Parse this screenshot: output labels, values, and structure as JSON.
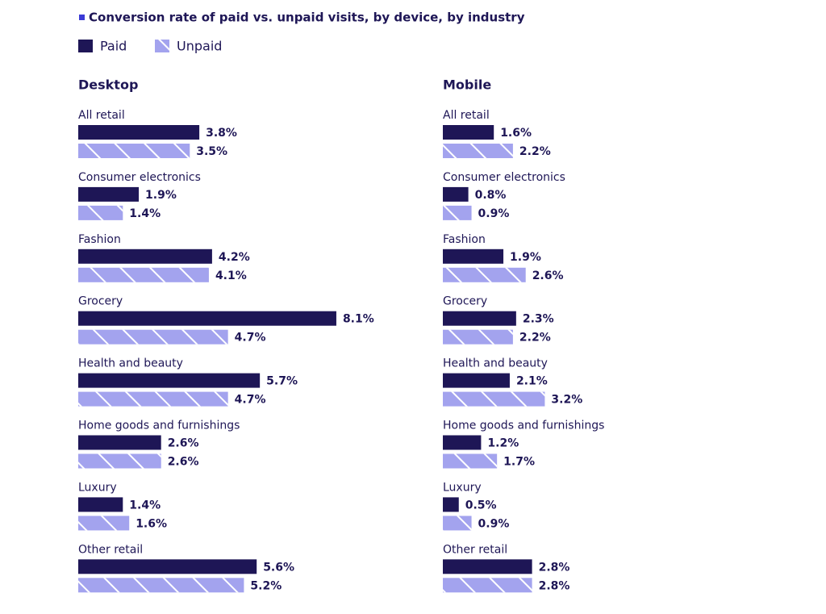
{
  "header": {
    "title": "Conversion rate of paid vs. unpaid visits, by device, by industry"
  },
  "chart_data": [
    {
      "type": "bar",
      "title": "Desktop",
      "categories": [
        "All retail",
        "Consumer electronics",
        "Fashion",
        "Grocery",
        "Health and beauty",
        "Home goods and furnishings",
        "Luxury",
        "Other retail"
      ],
      "series": [
        {
          "name": "Paid",
          "color": "#1e1656",
          "values": [
            3.8,
            1.9,
            4.2,
            8.1,
            5.7,
            2.6,
            1.4,
            5.6
          ],
          "value_labels": [
            "3.8%",
            "1.9%",
            "4.2%",
            "8.1%",
            "5.7%",
            "2.6%",
            "1.4%",
            "5.6%"
          ]
        },
        {
          "name": "Unpaid",
          "color": "#a3a3ee",
          "values": [
            3.5,
            1.4,
            4.1,
            4.7,
            4.7,
            2.6,
            1.6,
            5.2
          ],
          "value_labels": [
            "3.5%",
            "1.4%",
            "4.1%",
            "4.7%",
            "4.7%",
            "2.6%",
            "1.6%",
            "5.2%"
          ]
        }
      ]
    },
    {
      "type": "bar",
      "title": "Mobile",
      "categories": [
        "All retail",
        "Consumer electronics",
        "Fashion",
        "Grocery",
        "Health and beauty",
        "Home goods and furnishings",
        "Luxury",
        "Other retail"
      ],
      "series": [
        {
          "name": "Paid",
          "color": "#1e1656",
          "values": [
            1.6,
            0.8,
            1.9,
            2.3,
            2.1,
            1.2,
            0.5,
            2.8
          ],
          "value_labels": [
            "1.6%",
            "0.8%",
            "1.9%",
            "2.3%",
            "2.1%",
            "1.2%",
            "0.5%",
            "2.8%"
          ]
        },
        {
          "name": "Unpaid",
          "color": "#a3a3ee",
          "values": [
            2.2,
            0.9,
            2.6,
            2.2,
            3.2,
            1.7,
            0.9,
            2.8
          ],
          "value_labels": [
            "2.2%",
            "0.9%",
            "2.6%",
            "2.2%",
            "3.2%",
            "1.7%",
            "0.9%",
            "2.8%"
          ]
        }
      ]
    }
  ]
}
